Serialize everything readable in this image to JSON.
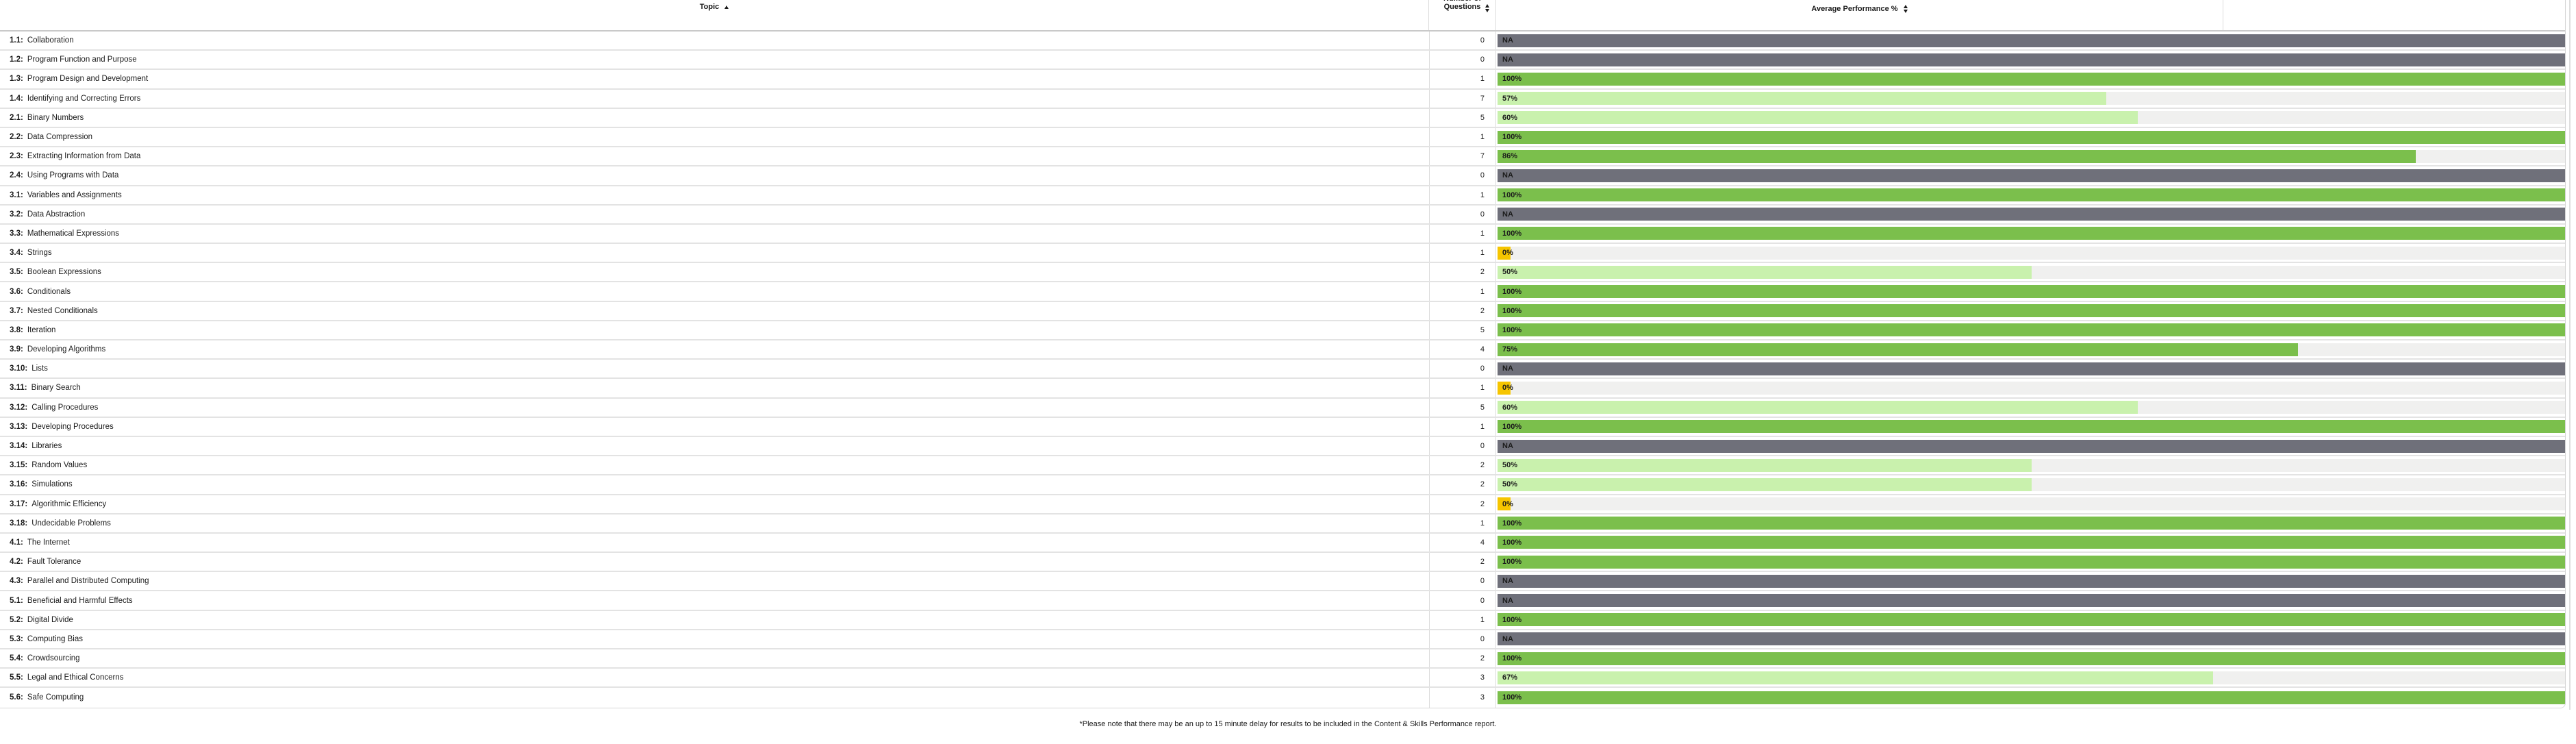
{
  "table": {
    "columns": [
      {
        "label": "Topic",
        "sort": "ascending"
      },
      {
        "label": "Number of Questions",
        "sort": "sortable"
      },
      {
        "label": "Average Performance %",
        "sort": "sortable"
      }
    ],
    "rows": [
      {
        "id": "1.1:",
        "name": "Collaboration",
        "questions": "0",
        "performance": "NA",
        "pct": null
      },
      {
        "id": "1.2:",
        "name": "Program Function and Purpose",
        "questions": "0",
        "performance": "NA",
        "pct": null
      },
      {
        "id": "1.3:",
        "name": "Program Design and Development",
        "questions": "1",
        "performance": "100%",
        "pct": 100
      },
      {
        "id": "1.4:",
        "name": "Identifying and Correcting Errors",
        "questions": "7",
        "performance": "57%",
        "pct": 57
      },
      {
        "id": "2.1:",
        "name": "Binary Numbers",
        "questions": "5",
        "performance": "60%",
        "pct": 60
      },
      {
        "id": "2.2:",
        "name": "Data Compression",
        "questions": "1",
        "performance": "100%",
        "pct": 100
      },
      {
        "id": "2.3:",
        "name": "Extracting Information from Data",
        "questions": "7",
        "performance": "86%",
        "pct": 86
      },
      {
        "id": "2.4:",
        "name": "Using Programs with Data",
        "questions": "0",
        "performance": "NA",
        "pct": null
      },
      {
        "id": "3.1:",
        "name": "Variables and Assignments",
        "questions": "1",
        "performance": "100%",
        "pct": 100
      },
      {
        "id": "3.2:",
        "name": "Data Abstraction",
        "questions": "0",
        "performance": "NA",
        "pct": null
      },
      {
        "id": "3.3:",
        "name": "Mathematical Expressions",
        "questions": "1",
        "performance": "100%",
        "pct": 100
      },
      {
        "id": "3.4:",
        "name": "Strings",
        "questions": "1",
        "performance": "0%",
        "pct": 0
      },
      {
        "id": "3.5:",
        "name": "Boolean Expressions",
        "questions": "2",
        "performance": "50%",
        "pct": 50
      },
      {
        "id": "3.6:",
        "name": "Conditionals",
        "questions": "1",
        "performance": "100%",
        "pct": 100
      },
      {
        "id": "3.7:",
        "name": "Nested Conditionals",
        "questions": "2",
        "performance": "100%",
        "pct": 100
      },
      {
        "id": "3.8:",
        "name": "Iteration",
        "questions": "5",
        "performance": "100%",
        "pct": 100
      },
      {
        "id": "3.9:",
        "name": "Developing Algorithms",
        "questions": "4",
        "performance": "75%",
        "pct": 75
      },
      {
        "id": "3.10:",
        "name": "Lists",
        "questions": "0",
        "performance": "NA",
        "pct": null
      },
      {
        "id": "3.11:",
        "name": "Binary Search",
        "questions": "1",
        "performance": "0%",
        "pct": 0
      },
      {
        "id": "3.12:",
        "name": "Calling Procedures",
        "questions": "5",
        "performance": "60%",
        "pct": 60
      },
      {
        "id": "3.13:",
        "name": "Developing Procedures",
        "questions": "1",
        "performance": "100%",
        "pct": 100
      },
      {
        "id": "3.14:",
        "name": "Libraries",
        "questions": "0",
        "performance": "NA",
        "pct": null
      },
      {
        "id": "3.15:",
        "name": "Random Values",
        "questions": "2",
        "performance": "50%",
        "pct": 50
      },
      {
        "id": "3.16:",
        "name": "Simulations",
        "questions": "2",
        "performance": "50%",
        "pct": 50
      },
      {
        "id": "3.17:",
        "name": "Algorithmic Efficiency",
        "questions": "2",
        "performance": "0%",
        "pct": 0
      },
      {
        "id": "3.18:",
        "name": "Undecidable Problems",
        "questions": "1",
        "performance": "100%",
        "pct": 100
      },
      {
        "id": "4.1:",
        "name": "The Internet",
        "questions": "4",
        "performance": "100%",
        "pct": 100
      },
      {
        "id": "4.2:",
        "name": "Fault Tolerance",
        "questions": "2",
        "performance": "100%",
        "pct": 100
      },
      {
        "id": "4.3:",
        "name": "Parallel and Distributed Computing",
        "questions": "0",
        "performance": "NA",
        "pct": null
      },
      {
        "id": "5.1:",
        "name": "Beneficial and Harmful Effects",
        "questions": "0",
        "performance": "NA",
        "pct": null
      },
      {
        "id": "5.2:",
        "name": "Digital Divide",
        "questions": "1",
        "performance": "100%",
        "pct": 100
      },
      {
        "id": "5.3:",
        "name": "Computing Bias",
        "questions": "0",
        "performance": "NA",
        "pct": null
      },
      {
        "id": "5.4:",
        "name": "Crowdsourcing",
        "questions": "2",
        "performance": "100%",
        "pct": 100
      },
      {
        "id": "5.5:",
        "name": "Legal and Ethical Concerns",
        "questions": "3",
        "performance": "67%",
        "pct": 67
      },
      {
        "id": "5.6:",
        "name": "Safe Computing",
        "questions": "3",
        "performance": "100%",
        "pct": 100
      }
    ],
    "footnote": "*Please note that there may be an up to 15 minute delay for results to be included in the Content & Skills Performance report."
  },
  "colors": {
    "bar_high": "#7bbf4c",
    "bar_low": "#c9f1ad",
    "bar_zero": "#f6c500",
    "bar_na": "#6f707a",
    "bar_track": "#f0f0ef"
  }
}
